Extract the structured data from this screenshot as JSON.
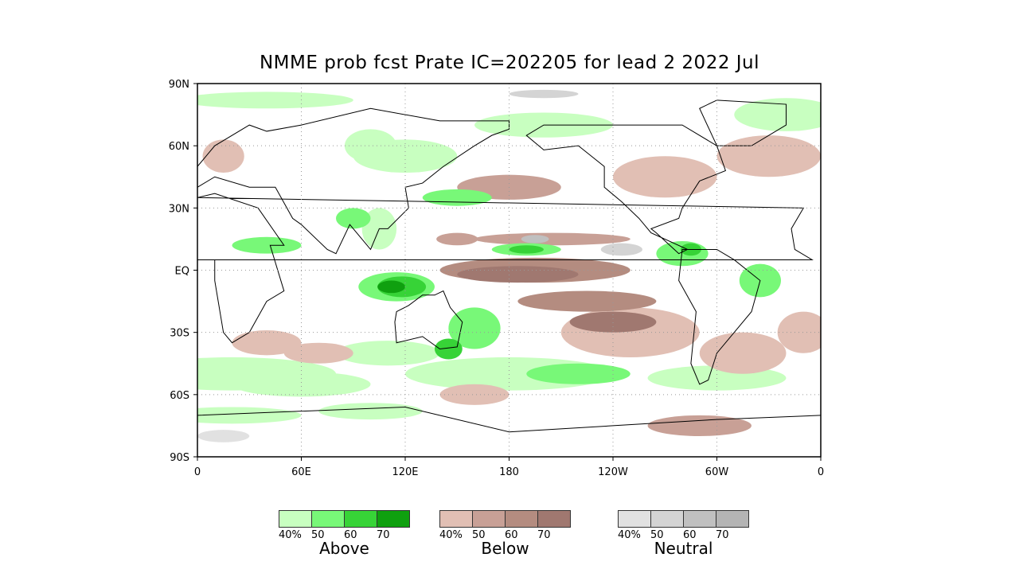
{
  "chart_data": {
    "type": "map",
    "title": "NMME prob fcst Prate IC=202205 for lead 2 2022 Jul",
    "y_ticks": [
      "90N",
      "60N",
      "30N",
      "EQ",
      "30S",
      "60S",
      "90S"
    ],
    "x_ticks": [
      "0",
      "60E",
      "120E",
      "180",
      "120W",
      "60W",
      "0"
    ],
    "lon_range": [
      0,
      360
    ],
    "lat_range": [
      -90,
      90
    ],
    "legend": [
      {
        "name": "Above",
        "labels": [
          "40%",
          "50",
          "60",
          "70"
        ],
        "colors": [
          "#c8ffc0",
          "#78f878",
          "#37d337",
          "#0fa00f"
        ]
      },
      {
        "name": "Below",
        "labels": [
          "40%",
          "50",
          "60",
          "70"
        ],
        "colors": [
          "#e1bfb4",
          "#c8a096",
          "#b48c80",
          "#a07870"
        ]
      },
      {
        "name": "Neutral",
        "labels": [
          "40%",
          "50",
          "60",
          "70"
        ],
        "colors": [
          "#e1e1e1",
          "#d4d4d4",
          "#c0c0c0",
          "#b4b4b4"
        ]
      }
    ]
  }
}
